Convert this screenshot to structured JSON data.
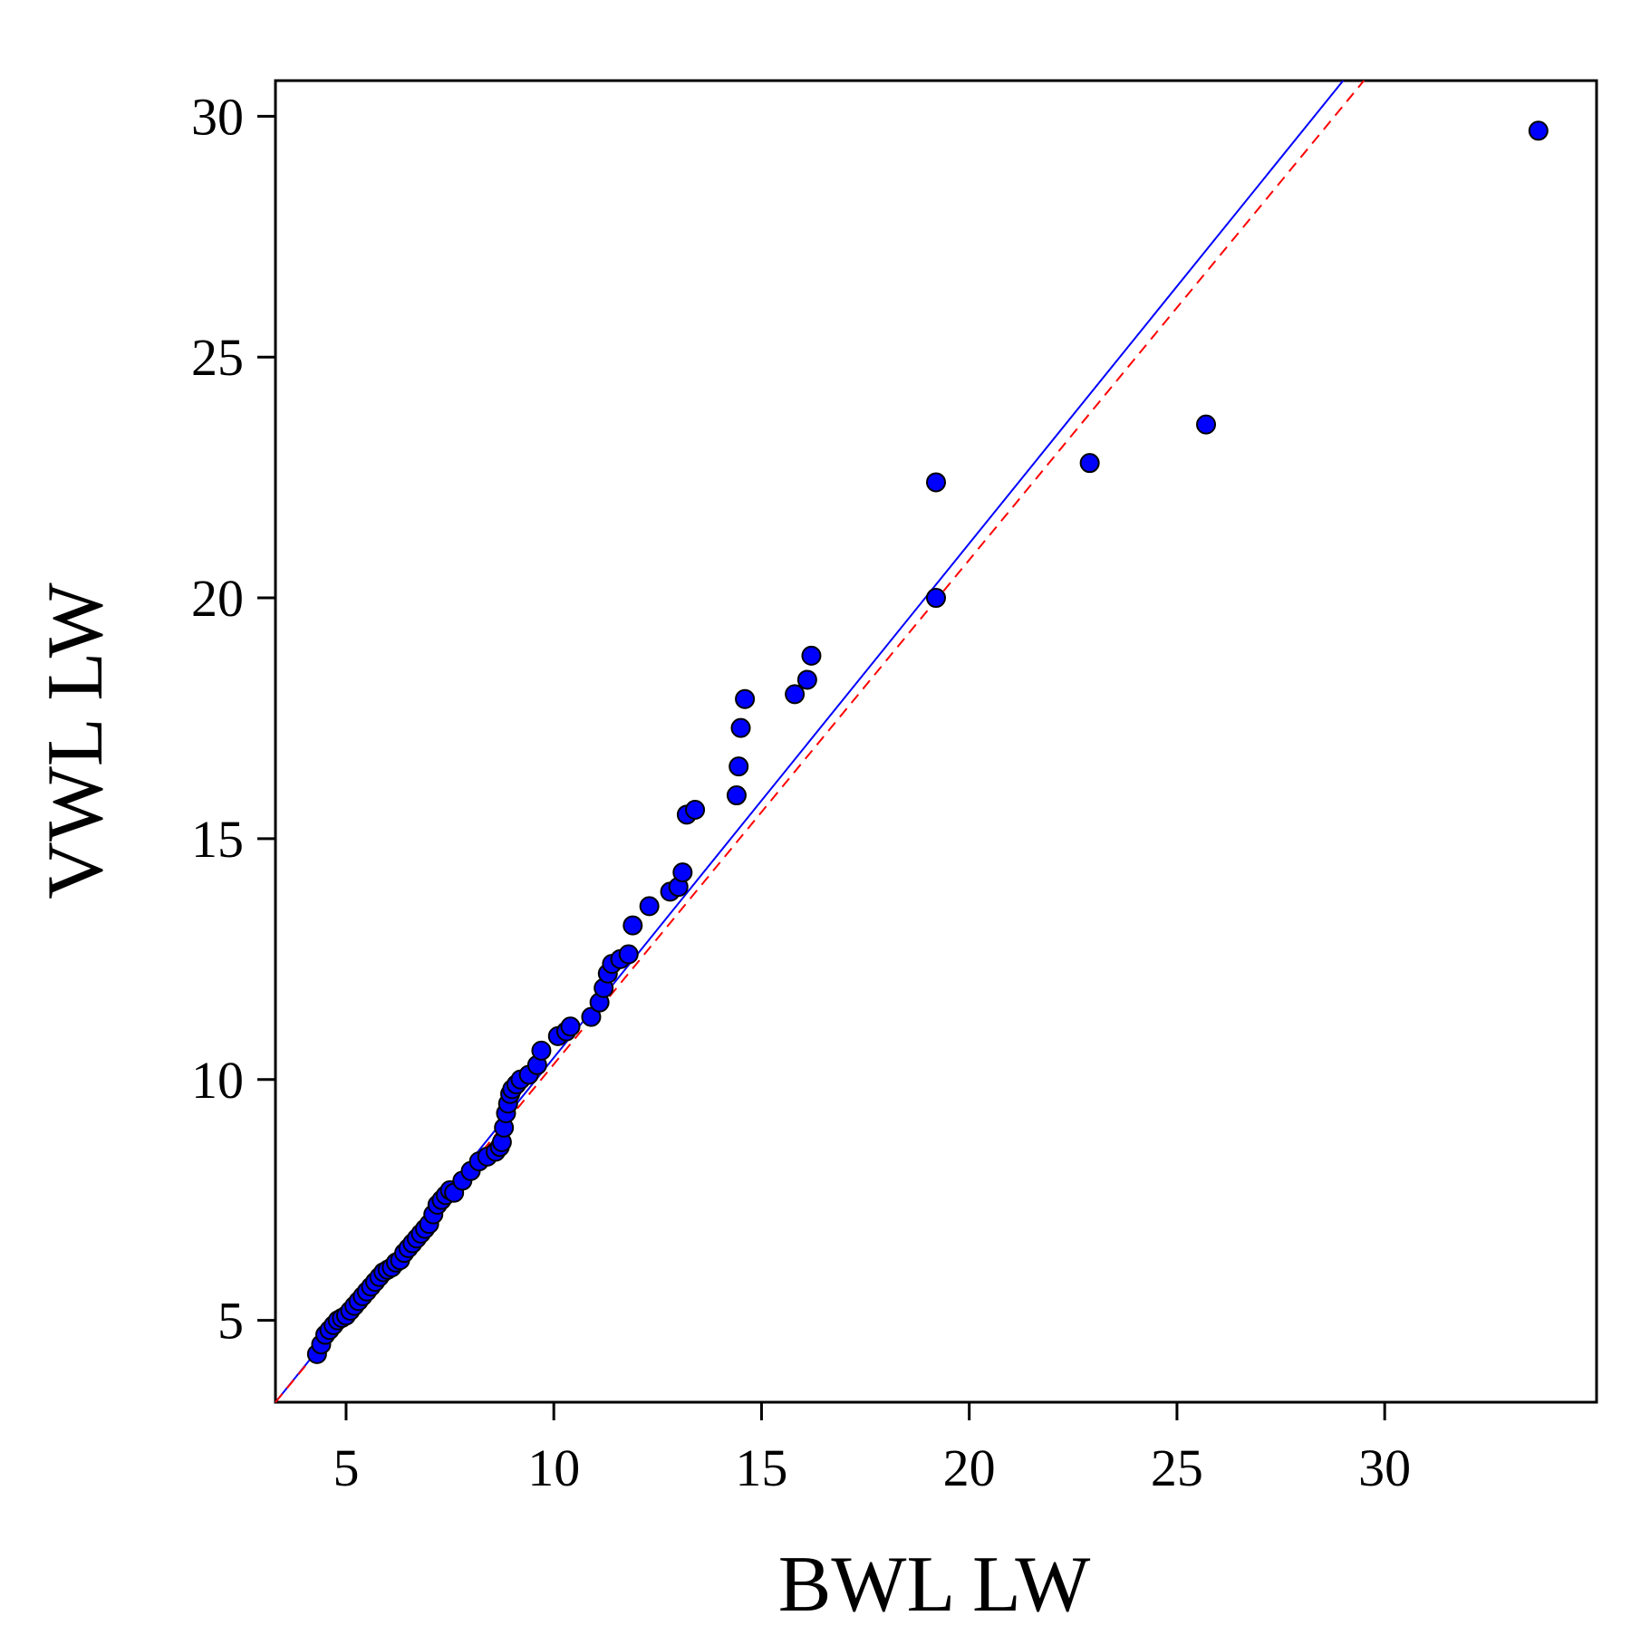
{
  "chart_data": {
    "type": "scatter",
    "title": "",
    "xlabel": "BWL LW",
    "ylabel": "VWL LW",
    "xlim": [
      3.3,
      35.1
    ],
    "ylim": [
      3.3,
      30.74
    ],
    "xticks": [
      5,
      10,
      15,
      20,
      25,
      30
    ],
    "yticks": [
      5,
      10,
      15,
      20,
      25,
      30
    ],
    "xtick_labels": [
      "5",
      "10",
      "15",
      "20",
      "25",
      "30"
    ],
    "ytick_labels": [
      "5",
      "10",
      "15",
      "20",
      "25",
      "30"
    ],
    "grid": false,
    "legend": "none",
    "point_color": "#0000ff",
    "point_edge_color": "#000000",
    "points": {
      "x": [
        4.3,
        4.4,
        4.5,
        4.6,
        4.7,
        4.8,
        4.9,
        5.0,
        5.1,
        5.2,
        5.3,
        5.4,
        5.5,
        5.6,
        5.7,
        5.8,
        5.9,
        6.0,
        6.1,
        6.2,
        6.3,
        6.4,
        6.5,
        6.6,
        6.7,
        6.8,
        6.9,
        7.0,
        7.1,
        7.2,
        7.3,
        7.4,
        7.5,
        7.6,
        7.8,
        8.0,
        8.2,
        8.4,
        8.6,
        8.7,
        8.75,
        8.8,
        8.85,
        8.9,
        8.95,
        9.0,
        9.1,
        9.2,
        9.4,
        9.6,
        9.7,
        10.1,
        10.3,
        10.4,
        10.9,
        11.1,
        11.2,
        11.3,
        11.4,
        11.6,
        11.8,
        11.9,
        12.3,
        12.8,
        13.0,
        13.1,
        13.2,
        13.4,
        14.4,
        14.45,
        14.5,
        14.6,
        15.8,
        16.1,
        16.2,
        19.2,
        19.2,
        22.9,
        25.7,
        33.7
      ],
      "y": [
        4.3,
        4.5,
        4.7,
        4.8,
        4.9,
        5.0,
        5.05,
        5.1,
        5.2,
        5.3,
        5.4,
        5.5,
        5.6,
        5.7,
        5.8,
        5.9,
        6.0,
        6.05,
        6.1,
        6.2,
        6.25,
        6.4,
        6.5,
        6.6,
        6.7,
        6.8,
        6.9,
        7.0,
        7.2,
        7.4,
        7.5,
        7.6,
        7.7,
        7.65,
        7.9,
        8.1,
        8.3,
        8.4,
        8.5,
        8.6,
        8.7,
        9.0,
        9.3,
        9.5,
        9.7,
        9.8,
        9.9,
        10.0,
        10.1,
        10.3,
        10.6,
        10.9,
        11.0,
        11.1,
        11.3,
        11.6,
        11.9,
        12.2,
        12.4,
        12.5,
        12.6,
        13.2,
        13.6,
        13.9,
        14.0,
        14.3,
        15.5,
        15.6,
        15.9,
        16.5,
        17.3,
        17.9,
        18.0,
        18.3,
        18.8,
        20.0,
        22.4,
        22.8,
        23.6,
        29.7
      ]
    },
    "lines": [
      {
        "style": "solid",
        "color": "#0000ff",
        "x": [
          3.3,
          29.0
        ],
        "y": [
          3.3,
          30.74
        ]
      },
      {
        "style": "dashed",
        "color": "#ff0000",
        "x": [
          3.3,
          29.5
        ],
        "y": [
          3.3,
          30.74
        ]
      }
    ]
  }
}
